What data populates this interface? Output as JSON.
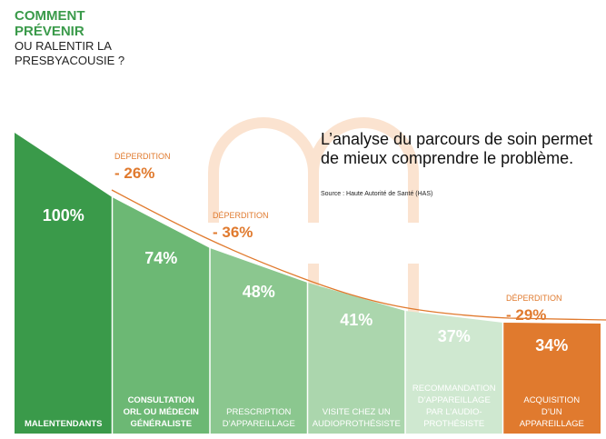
{
  "header": {
    "line1": "COMMENT",
    "line2": "PRÉVENIR",
    "line3": "OU RALENTIR LA",
    "line4": "PRESBYACOUSIE ?"
  },
  "intro": {
    "text": "L’analyse du parcours de soin permet de mieux comprendre le problème.",
    "source": "Source : Haute Autorité de Santé (HAS)"
  },
  "colors": {
    "green_dark": "#3a9a4a",
    "green_mid": "#6cb874",
    "orange": "#e07a2e",
    "watermark": "#fbe3d0"
  },
  "chart_data": {
    "type": "bar",
    "categories": [
      [
        "MALENTENDANTS"
      ],
      [
        "CONSULTATION",
        "ORL OU MÉDECIN",
        "GÉNÉRALISTE"
      ],
      [
        "PRESCRIPTION",
        "D’APPAREILLAGE"
      ],
      [
        "VISITE CHEZ UN",
        "AUDIOPROTHÉSISTE"
      ],
      [
        "RECOMMANDATION",
        "D’APPAREILLAGE",
        "PAR L’AUDIO-",
        "PROTHÉSISTE"
      ],
      [
        "ACQUISITION",
        "D’UN",
        "APPAREILLAGE"
      ]
    ],
    "values": [
      100,
      74,
      48,
      41,
      37,
      34
    ],
    "value_labels": [
      "100%",
      "74%",
      "48%",
      "41%",
      "37%",
      "34%"
    ],
    "losses": [
      {
        "label": "DÉPERDITION",
        "value": "- 26%"
      },
      {
        "label": "DÉPERDITION",
        "value": "- 36%"
      },
      {
        "label": "DÉPERDITION",
        "value": "- 29%"
      }
    ],
    "fills": [
      "#3a9a4a",
      "#6cb874",
      "#8bc78f",
      "#abd6ad",
      "#cfe8d0",
      "#e07a2e"
    ],
    "value_colors": [
      "#ffffff",
      "#ffffff",
      "#ffffff",
      "#3a9a4a",
      "#3a9a4a",
      "#ffffff"
    ],
    "label_colors": [
      "#ffffff",
      "#ffffff",
      "#ffffff",
      "#3a9a4a",
      "#3a9a4a",
      "#ffffff"
    ],
    "label_bold": [
      true,
      true,
      false,
      false,
      false,
      false
    ]
  }
}
